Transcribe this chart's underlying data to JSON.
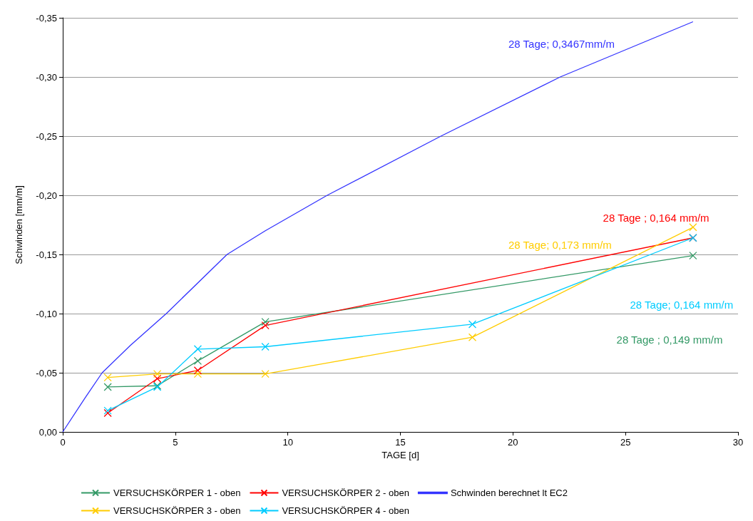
{
  "chart_data": {
    "type": "line",
    "xlabel": "TAGE [d]",
    "ylabel": "Schwinden [mm/m]",
    "xlim": [
      0,
      30
    ],
    "xticks": [
      0,
      5,
      10,
      15,
      20,
      25,
      30
    ],
    "ylim": [
      0,
      -0.35
    ],
    "yticks": [
      {
        "value": 0,
        "label": "0,00"
      },
      {
        "value": -0.05,
        "label": "-0,05"
      },
      {
        "value": -0.1,
        "label": "-0,10"
      },
      {
        "value": -0.15,
        "label": "-0,15"
      },
      {
        "value": -0.2,
        "label": "-0,20"
      },
      {
        "value": -0.25,
        "label": "-0,25"
      },
      {
        "value": -0.3,
        "label": "-0,30"
      },
      {
        "value": -0.35,
        "label": "-0,35"
      }
    ],
    "grid": "y",
    "legend": "bottom",
    "marker": "cross",
    "line_style": "solid",
    "annotations": [
      "28 Tage; 0,3467mm/m",
      "28 Tage ; 0,164 mm/m",
      "28 Tage; 0,173 mm/m",
      "28 Tage; 0,164 mm/m",
      "28 Tage ; 0,149 mm/m"
    ],
    "series": [
      {
        "name": "VERSUCHSKÖRPER 1 - oben",
        "color": "#339966",
        "x": [
          2,
          4.2,
          6,
          9,
          28
        ],
        "values": [
          -0.038,
          -0.039,
          -0.06,
          -0.093,
          -0.149
        ]
      },
      {
        "name": "VERSUCHSKÖRPER 2 - oben",
        "color": "#ff0000",
        "x": [
          2,
          4.2,
          6,
          9,
          28
        ],
        "values": [
          -0.016,
          -0.045,
          -0.052,
          -0.09,
          -0.164
        ]
      },
      {
        "name": "Schwinden berechnet lt EC2",
        "color": "#3333ff",
        "marker": "none",
        "x": [
          0,
          1,
          1.75,
          3,
          4.6,
          7.3,
          9,
          11.75,
          16.8,
          22.1,
          28
        ],
        "values": [
          0,
          -0.029,
          -0.05,
          -0.073,
          -0.1,
          -0.15,
          -0.17,
          -0.2,
          -0.25,
          -0.3,
          -0.3467
        ]
      },
      {
        "name": "VERSUCHSKÖRPER 3 - oben",
        "color": "#ffcc00",
        "x": [
          2,
          4.2,
          6,
          9,
          18.2,
          28
        ],
        "values": [
          -0.046,
          -0.049,
          -0.049,
          -0.049,
          -0.08,
          -0.173
        ]
      },
      {
        "name": "VERSUCHSKÖRPER 4 - oben",
        "color": "#00ccff",
        "x": [
          2,
          4.2,
          6,
          9,
          18.2,
          28
        ],
        "values": [
          -0.018,
          -0.038,
          -0.07,
          -0.072,
          -0.091,
          -0.164
        ]
      }
    ]
  }
}
